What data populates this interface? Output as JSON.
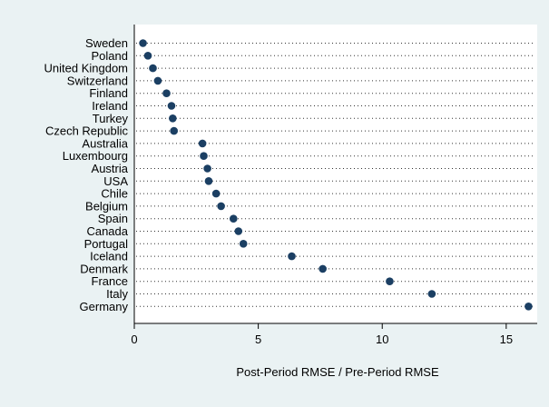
{
  "chart_data": {
    "type": "scatter",
    "style": "dot-plot",
    "categories": [
      "Sweden",
      "Poland",
      "United Kingdom",
      "Switzerland",
      "Finland",
      "Ireland",
      "Turkey",
      "Czech Republic",
      "Australia",
      "Luxembourg",
      "Austria",
      "USA",
      "Chile",
      "Belgium",
      "Spain",
      "Canada",
      "Portugal",
      "Iceland",
      "Denmark",
      "France",
      "Italy",
      "Germany"
    ],
    "values": [
      0.35,
      0.55,
      0.75,
      0.95,
      1.3,
      1.5,
      1.55,
      1.6,
      2.75,
      2.8,
      2.95,
      3.0,
      3.3,
      3.5,
      4.0,
      4.2,
      4.4,
      6.35,
      7.6,
      10.3,
      12.0,
      15.9
    ],
    "xlabel": "Post-Period RMSE / Pre-Period RMSE",
    "ylabel": "",
    "title": "",
    "xlim": [
      0,
      16.25
    ],
    "xticks": [
      0,
      5,
      10,
      15
    ],
    "colors": {
      "marker": "#1b3f63",
      "plot_bg": "#ffffff",
      "page_bg": "#eaf2f3"
    },
    "grid": "dotted horizontal guide lines",
    "legend": "none"
  }
}
